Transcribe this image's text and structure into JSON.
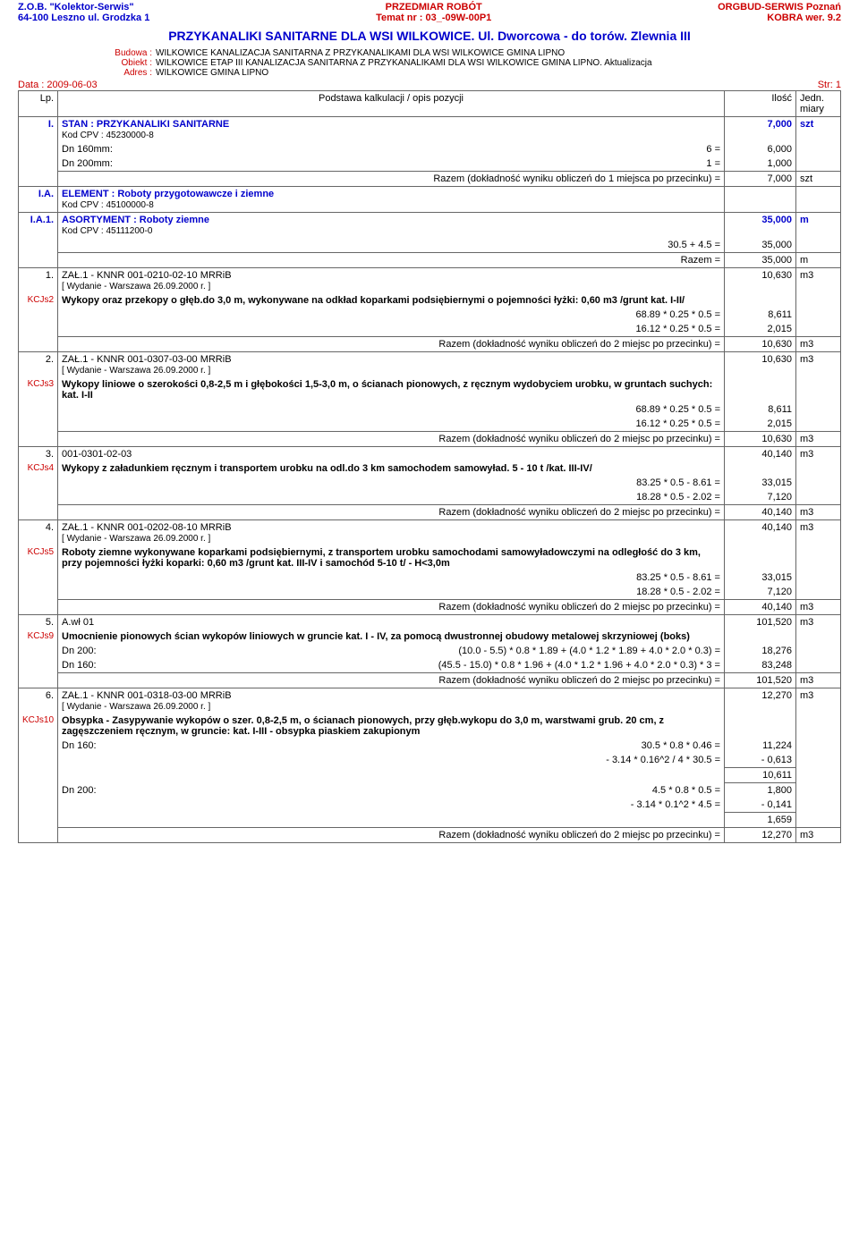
{
  "header": {
    "left1": "Z.O.B. \"Kolektor-Serwis\"",
    "left2": "64-100 Leszno ul. Grodzka 1",
    "center1": "PRZEDMIAR ROBÓT",
    "center2": "Temat nr : 03_-09W-00P1",
    "right1": "ORGBUD-SERWIS Poznań",
    "right2": "KOBRA wer. 9.2"
  },
  "title": "PRZYKANALIKI  SANITARNE DLA WSI WILKOWICE. Ul. Dworcowa - do torów.  Zlewnia III",
  "meta": {
    "budowa_label": "Budowa :",
    "budowa": "WILKOWICE KANALIZACJA SANITARNA Z PRZYKANALIKAMI DLA WSI WILKOWICE GMINA LIPNO",
    "obiekt_label": "Obiekt :",
    "obiekt": "WILKOWICE ETAP III KANALIZACJA SANITARNA Z PRZYKANALIKAMI DLA WSI WILKOWICE GMINA LIPNO. Aktualizacja",
    "adres_label": "Adres :",
    "adres": "WILKOWICE GMINA LIPNO"
  },
  "date": "Data : 2009-06-03",
  "page": "Str: 1",
  "thead": {
    "lp": "Lp.",
    "desc": "Podstawa kalkulacji / opis pozycji",
    "qty": "Ilość",
    "unit": "Jedn. miary"
  },
  "rows": {
    "r1": {
      "lp": "I.",
      "title": "STAN :   PRZYKANALIKI SANITARNE",
      "cpv": "Kod CPV :  45230000-8",
      "qty": "7,000",
      "unit": "szt",
      "l1a": "Dn 160mm:",
      "l1b": "6 =",
      "l1q": "6,000",
      "l2a": "Dn 200mm:",
      "l2b": "1 =",
      "l2q": "1,000",
      "sum_label": "Razem   (dokładność wyniku obliczeń do 1 miejsca po przecinku) =",
      "sum_q": "7,000",
      "sum_u": "szt"
    },
    "r2": {
      "lp": "I.A.",
      "title": "ELEMENT :   Roboty przygotowawcze i ziemne",
      "cpv": "Kod CPV :  45100000-8"
    },
    "r3": {
      "lp": "I.A.1.",
      "title": "ASORTYMENT :   Roboty ziemne",
      "cpv": "Kod CPV :  45111200-0",
      "qty": "35,000",
      "unit": "m",
      "calc": "30.5 + 4.5 =",
      "calc_q": "35,000",
      "sum_label": "Razem   =",
      "sum_q": "35,000",
      "sum_u": "m"
    },
    "p1": {
      "lp": "1.",
      "ref": "ZAŁ.1 - KNNR  001-0210-02-10  MRRiB",
      "wyd": "[ Wydanie - Warszawa 26.09.2000 r. ]",
      "qty": "10,630",
      "unit": "m3",
      "kcjs": "KCJs2",
      "desc": "Wykopy oraz przekopy o głęb.do 3,0 m, wykonywane na odkład koparkami podsiębiernymi o pojemności łyżki: 0,60 m3 /grunt kat. I-II/",
      "c1": "68.89 * 0.25 * 0.5 =",
      "c1q": "8,611",
      "c2": "16.12 * 0.25 * 0.5 =",
      "c2q": "2,015",
      "sum_label": "Razem   (dokładność wyniku obliczeń do 2 miejsc po przecinku) =",
      "sum_q": "10,630",
      "sum_u": "m3"
    },
    "p2": {
      "lp": "2.",
      "ref": "ZAŁ.1 - KNNR  001-0307-03-00  MRRiB",
      "wyd": "[ Wydanie - Warszawa 26.09.2000 r. ]",
      "qty": "10,630",
      "unit": "m3",
      "kcjs": "KCJs3",
      "desc": "Wykopy liniowe o szerokości 0,8-2,5 m i głębokości 1,5-3,0 m, o ścianach pionowych, z ręcznym wydobyciem urobku, w gruntach suchych: kat. I-II",
      "c1": "68.89 * 0.25 * 0.5 =",
      "c1q": "8,611",
      "c2": "16.12 * 0.25 * 0.5 =",
      "c2q": "2,015",
      "sum_label": "Razem   (dokładność wyniku obliczeń do 2 miejsc po przecinku) =",
      "sum_q": "10,630",
      "sum_u": "m3"
    },
    "p3": {
      "lp": "3.",
      "ref": "001-0301-02-03",
      "qty": "40,140",
      "unit": "m3",
      "kcjs": "KCJs4",
      "desc": "Wykopy z załadunkiem ręcznym i transportem urobku na odl.do 3 km samochodem samowyład.  5 - 10 t /kat. III-IV/",
      "c1": "83.25 * 0.5 - 8.61 =",
      "c1q": "33,015",
      "c2": "18.28 * 0.5 - 2.02 =",
      "c2q": "7,120",
      "sum_label": "Razem   (dokładność wyniku obliczeń do 2 miejsc po przecinku) =",
      "sum_q": "40,140",
      "sum_u": "m3"
    },
    "p4": {
      "lp": "4.",
      "ref": "ZAŁ.1 - KNNR  001-0202-08-10  MRRiB",
      "wyd": "[ Wydanie - Warszawa 26.09.2000 r. ]",
      "qty": "40,140",
      "unit": "m3",
      "kcjs": "KCJs5",
      "desc": "Roboty ziemne wykonywane koparkami podsiębiernymi, z transportem urobku samochodami samowyładowczymi na odległość do 3 km, przy pojemności łyżki koparki: 0,60 m3 /grunt kat. III-IV i samochód 5-10 t/ - H<3,0m",
      "c1": "83.25 * 0.5 - 8.61 =",
      "c1q": "33,015",
      "c2": "18.28 * 0.5 - 2.02 =",
      "c2q": "7,120",
      "sum_label": "Razem   (dokładność wyniku obliczeń do 2 miejsc po przecinku) =",
      "sum_q": "40,140",
      "sum_u": "m3"
    },
    "p5": {
      "lp": "5.",
      "ref": "A.wł  01",
      "qty": "101,520",
      "unit": "m3",
      "kcjs": "KCJs9",
      "desc": "Umocnienie pionowych ścian wykopów liniowych w gruncie kat. I - IV, za pomocą dwustronnej obudowy metalowej skrzyniowej (boks)",
      "l1a": "Dn 200:",
      "l1b": "(10.0 - 5.5) * 0.8 * 1.89 + (4.0 * 1.2 * 1.89 + 4.0 * 2.0 * 0.3) =",
      "l1q": "18,276",
      "l2a": "Dn 160:",
      "l2b": "(45.5 - 15.0) * 0.8 * 1.96 + (4.0 * 1.2 * 1.96 + 4.0 * 2.0 * 0.3) * 3 =",
      "l2q": "83,248",
      "sum_label": "Razem   (dokładność wyniku obliczeń do 2 miejsc po przecinku) =",
      "sum_q": "101,520",
      "sum_u": "m3"
    },
    "p6": {
      "lp": "6.",
      "ref": "ZAŁ.1 - KNNR  001-0318-03-00  MRRiB",
      "wyd": "[ Wydanie - Warszawa 26.09.2000 r. ]",
      "qty": "12,270",
      "unit": "m3",
      "kcjs": "KCJs10",
      "desc": "Obsypka  - Zasypywanie wykopów o szer. 0,8-2,5 m, o ścianach pionowych, przy głęb.wykopu do 3,0 m, warstwami grub. 20 cm, z zagęszczeniem ręcznym, w gruncie: kat. I-III - obsypka piaskiem zakupionym",
      "l1a": "Dn 160:",
      "l1b": "30.5 * 0.8 * 0.46 =",
      "l1q": "11,224",
      "l1c": "- 3.14 * 0.16^2 / 4 * 30.5 =",
      "l1cq": "-  0,613",
      "sub1": "10,611",
      "l2a": "Dn 200:",
      "l2b": "4.5 * 0.8 * 0.5 =",
      "l2q": "1,800",
      "l2c": "- 3.14 * 0.1^2 * 4.5 =",
      "l2cq": "-  0,141",
      "sub2": "1,659",
      "sum_label": "Razem   (dokładność wyniku obliczeń do 2 miejsc po przecinku) =",
      "sum_q": "12,270",
      "sum_u": "m3"
    }
  }
}
